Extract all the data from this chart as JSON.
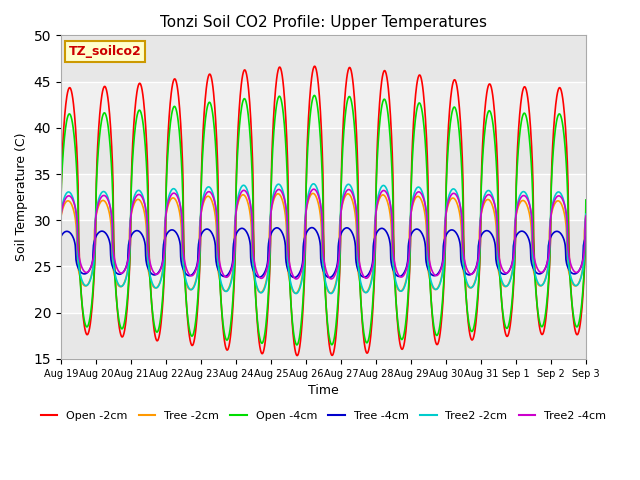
{
  "title": "Tonzi Soil CO2 Profile: Upper Temperatures",
  "xlabel": "Time",
  "ylabel": "Soil Temperature (C)",
  "ylim": [
    15,
    50
  ],
  "yticks": [
    15,
    20,
    25,
    30,
    35,
    40,
    45,
    50
  ],
  "legend_title": "TZ_soilco2",
  "legend_title_color": "#cc0000",
  "legend_title_bg": "#ffffcc",
  "legend_title_border": "#cc9900",
  "fig_facecolor": "#ffffff",
  "plot_facecolor": "#f0f0f0",
  "grid_color": "#ffffff",
  "series": [
    {
      "label": "Open -2cm",
      "color": "#ff0000",
      "base": 31.0,
      "amp": 14.5,
      "phase": 0.0,
      "lw": 1.2
    },
    {
      "label": "Tree -2cm",
      "color": "#ff9900",
      "base": 27.5,
      "amp": 5.0,
      "phase": 0.3,
      "lw": 1.2
    },
    {
      "label": "Open -4cm",
      "color": "#00dd00",
      "base": 30.0,
      "amp": 12.5,
      "phase": 0.05,
      "lw": 1.2
    },
    {
      "label": "Tree -4cm",
      "color": "#0000cc",
      "base": 26.5,
      "amp": 2.5,
      "phase": 0.5,
      "lw": 1.2
    },
    {
      "label": "Tree2 -2cm",
      "color": "#00cccc",
      "base": 28.0,
      "amp": 5.5,
      "phase": 0.2,
      "lw": 1.2
    },
    {
      "label": "Tree2 -4cm",
      "color": "#cc00cc",
      "base": 28.5,
      "amp": 4.5,
      "phase": 0.15,
      "lw": 1.2
    }
  ],
  "n_points": 1500,
  "n_days": 15
}
